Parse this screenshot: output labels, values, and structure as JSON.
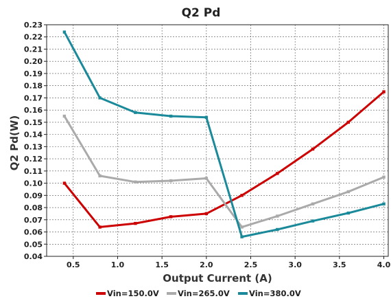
{
  "chart_data": {
    "type": "line",
    "title": "Q2 Pd",
    "xlabel": "Output Current (A)",
    "ylabel": "Q2 Pd(W)",
    "xlim": [
      0.2,
      4.05
    ],
    "ylim": [
      0.04,
      0.23
    ],
    "xticks": [
      0.5,
      1.0,
      1.5,
      2.0,
      2.5,
      3.0,
      3.5,
      4.0
    ],
    "xtick_labels": [
      "0.5",
      "1.0",
      "1.5",
      "2.0",
      "2.5",
      "3.0",
      "3.5",
      "4.0"
    ],
    "yticks": [
      0.04,
      0.05,
      0.06,
      0.07,
      0.08,
      0.09,
      0.1,
      0.11,
      0.12,
      0.13,
      0.14,
      0.15,
      0.16,
      0.17,
      0.18,
      0.19,
      0.2,
      0.21,
      0.22,
      0.23
    ],
    "ytick_labels": [
      "0.04",
      "0.05",
      "0.06",
      "0.07",
      "0.08",
      "0.09",
      "0.10",
      "0.11",
      "0.12",
      "0.13",
      "0.14",
      "0.15",
      "0.16",
      "0.17",
      "0.18",
      "0.19",
      "0.20",
      "0.21",
      "0.22",
      "0.23"
    ],
    "grid": true,
    "legend_position": "bottom",
    "x": [
      0.4,
      0.8,
      1.2,
      1.6,
      2.0,
      2.4,
      2.8,
      3.2,
      3.6,
      4.0
    ],
    "series": [
      {
        "name": "Vin=150.0V",
        "color": "#cc0000",
        "values": [
          0.1,
          0.064,
          0.067,
          0.0725,
          0.075,
          0.09,
          0.108,
          0.128,
          0.15,
          0.175
        ]
      },
      {
        "name": "Vin=265.0V",
        "color": "#aaaaaa",
        "values": [
          0.155,
          0.106,
          0.101,
          0.102,
          0.104,
          0.064,
          0.073,
          0.083,
          0.093,
          0.105
        ]
      },
      {
        "name": "Vin=380.0V",
        "color": "#1a8a9a",
        "values": [
          0.224,
          0.17,
          0.158,
          0.155,
          0.154,
          0.056,
          0.062,
          0.069,
          0.0755,
          0.083
        ]
      }
    ]
  }
}
